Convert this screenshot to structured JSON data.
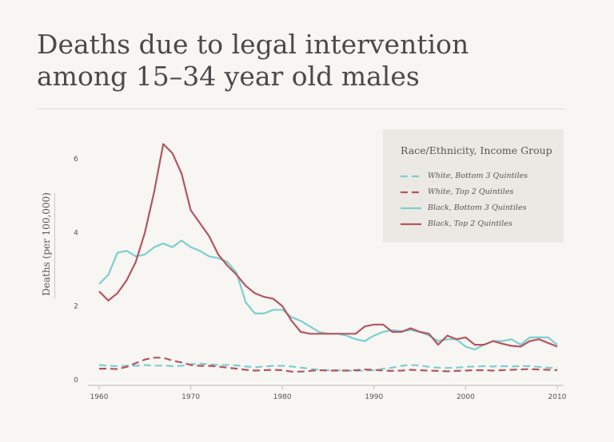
{
  "title": "Deaths due to legal intervention among 15–34 year old males",
  "chart_data": {
    "type": "line",
    "title": "Deaths due to legal intervention among 15–34 year old males",
    "xlabel": "",
    "ylabel": "Deaths (per 100,000)",
    "xlim": [
      1960,
      2010
    ],
    "ylim": [
      0,
      6.5
    ],
    "x_ticks": [
      1960,
      1970,
      1980,
      1990,
      2000,
      2010
    ],
    "y_ticks": [
      0,
      2,
      4,
      6
    ],
    "grid": false,
    "legend_title": "Race/Ethnicity, Income Group",
    "legend_position": "top-right",
    "x": [
      1960,
      1961,
      1962,
      1963,
      1964,
      1965,
      1966,
      1967,
      1968,
      1969,
      1970,
      1971,
      1972,
      1973,
      1974,
      1975,
      1976,
      1977,
      1978,
      1979,
      1980,
      1981,
      1982,
      1983,
      1984,
      1985,
      1986,
      1987,
      1988,
      1989,
      1990,
      1991,
      1992,
      1993,
      1994,
      1995,
      1996,
      1997,
      1998,
      1999,
      2000,
      2001,
      2002,
      2003,
      2004,
      2005,
      2006,
      2007,
      2008,
      2009,
      2010
    ],
    "series": [
      {
        "name": "White, Bottom 3 Quintiles",
        "color": "#7ccfcf",
        "style": "dashed",
        "values": [
          0.4,
          0.38,
          0.37,
          0.38,
          0.38,
          0.4,
          0.38,
          0.39,
          0.37,
          0.38,
          0.42,
          0.44,
          0.42,
          0.4,
          0.4,
          0.39,
          0.36,
          0.34,
          0.36,
          0.38,
          0.38,
          0.36,
          0.33,
          0.3,
          0.27,
          0.26,
          0.26,
          0.25,
          0.24,
          0.25,
          0.26,
          0.3,
          0.33,
          0.38,
          0.4,
          0.39,
          0.35,
          0.33,
          0.32,
          0.33,
          0.35,
          0.36,
          0.37,
          0.36,
          0.37,
          0.36,
          0.37,
          0.37,
          0.35,
          0.33,
          0.32
        ]
      },
      {
        "name": "White, Top 2 Quintiles",
        "color": "#b5555f",
        "style": "dashed",
        "values": [
          0.3,
          0.3,
          0.29,
          0.35,
          0.45,
          0.55,
          0.6,
          0.6,
          0.52,
          0.47,
          0.4,
          0.38,
          0.38,
          0.36,
          0.33,
          0.3,
          0.27,
          0.25,
          0.26,
          0.27,
          0.26,
          0.22,
          0.22,
          0.24,
          0.26,
          0.25,
          0.25,
          0.25,
          0.26,
          0.28,
          0.27,
          0.25,
          0.24,
          0.25,
          0.27,
          0.26,
          0.25,
          0.24,
          0.23,
          0.24,
          0.25,
          0.26,
          0.26,
          0.25,
          0.26,
          0.27,
          0.28,
          0.29,
          0.28,
          0.27,
          0.26
        ]
      },
      {
        "name": "Black, Bottom 3 Quintiles",
        "color": "#7ccfcf",
        "style": "solid",
        "values": [
          2.6,
          2.85,
          3.45,
          3.5,
          3.35,
          3.4,
          3.6,
          3.7,
          3.6,
          3.78,
          3.6,
          3.5,
          3.35,
          3.3,
          3.2,
          2.9,
          2.1,
          1.8,
          1.8,
          1.9,
          1.9,
          1.7,
          1.6,
          1.45,
          1.3,
          1.25,
          1.25,
          1.2,
          1.1,
          1.05,
          1.2,
          1.3,
          1.35,
          1.32,
          1.35,
          1.3,
          1.2,
          1.05,
          1.1,
          1.1,
          0.9,
          0.82,
          0.95,
          1.05,
          1.05,
          1.1,
          0.95,
          1.15,
          1.15,
          1.15,
          0.95
        ]
      },
      {
        "name": "Black, Top 2 Quintiles",
        "color": "#b5555f",
        "style": "solid",
        "values": [
          2.4,
          2.15,
          2.35,
          2.7,
          3.2,
          4.0,
          5.1,
          6.4,
          6.15,
          5.6,
          4.6,
          4.25,
          3.9,
          3.4,
          3.1,
          2.85,
          2.55,
          2.35,
          2.25,
          2.2,
          2.0,
          1.6,
          1.3,
          1.25,
          1.25,
          1.25,
          1.25,
          1.25,
          1.25,
          1.45,
          1.5,
          1.5,
          1.3,
          1.3,
          1.4,
          1.3,
          1.25,
          0.95,
          1.2,
          1.1,
          1.15,
          0.95,
          0.95,
          1.05,
          0.98,
          0.92,
          0.9,
          1.05,
          1.1,
          1.0,
          0.9
        ]
      }
    ]
  }
}
